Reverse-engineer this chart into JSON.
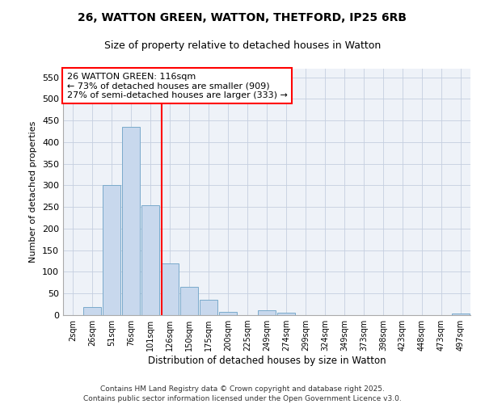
{
  "title1": "26, WATTON GREEN, WATTON, THETFORD, IP25 6RB",
  "title2": "Size of property relative to detached houses in Watton",
  "xlabel": "Distribution of detached houses by size in Watton",
  "ylabel": "Number of detached properties",
  "bar_labels": [
    "2sqm",
    "26sqm",
    "51sqm",
    "76sqm",
    "101sqm",
    "126sqm",
    "150sqm",
    "175sqm",
    "200sqm",
    "225sqm",
    "249sqm",
    "274sqm",
    "299sqm",
    "324sqm",
    "349sqm",
    "373sqm",
    "398sqm",
    "423sqm",
    "448sqm",
    "473sqm",
    "497sqm"
  ],
  "bar_heights": [
    0,
    18,
    300,
    435,
    255,
    120,
    65,
    35,
    8,
    0,
    12,
    5,
    0,
    0,
    0,
    0,
    0,
    0,
    0,
    0,
    4
  ],
  "bar_color": "#c8d8ed",
  "bar_edge_color": "#7aaacb",
  "ylim": [
    0,
    570
  ],
  "yticks": [
    0,
    50,
    100,
    150,
    200,
    250,
    300,
    350,
    400,
    450,
    500,
    550
  ],
  "red_line_x": 4.6,
  "annotation_line1": "26 WATTON GREEN: 116sqm",
  "annotation_line2": "← 73% of detached houses are smaller (909)",
  "annotation_line3": "27% of semi-detached houses are larger (333) →",
  "bg_color": "#eef2f8",
  "grid_color": "#c5cfe0",
  "footer1": "Contains HM Land Registry data © Crown copyright and database right 2025.",
  "footer2": "Contains public sector information licensed under the Open Government Licence v3.0."
}
